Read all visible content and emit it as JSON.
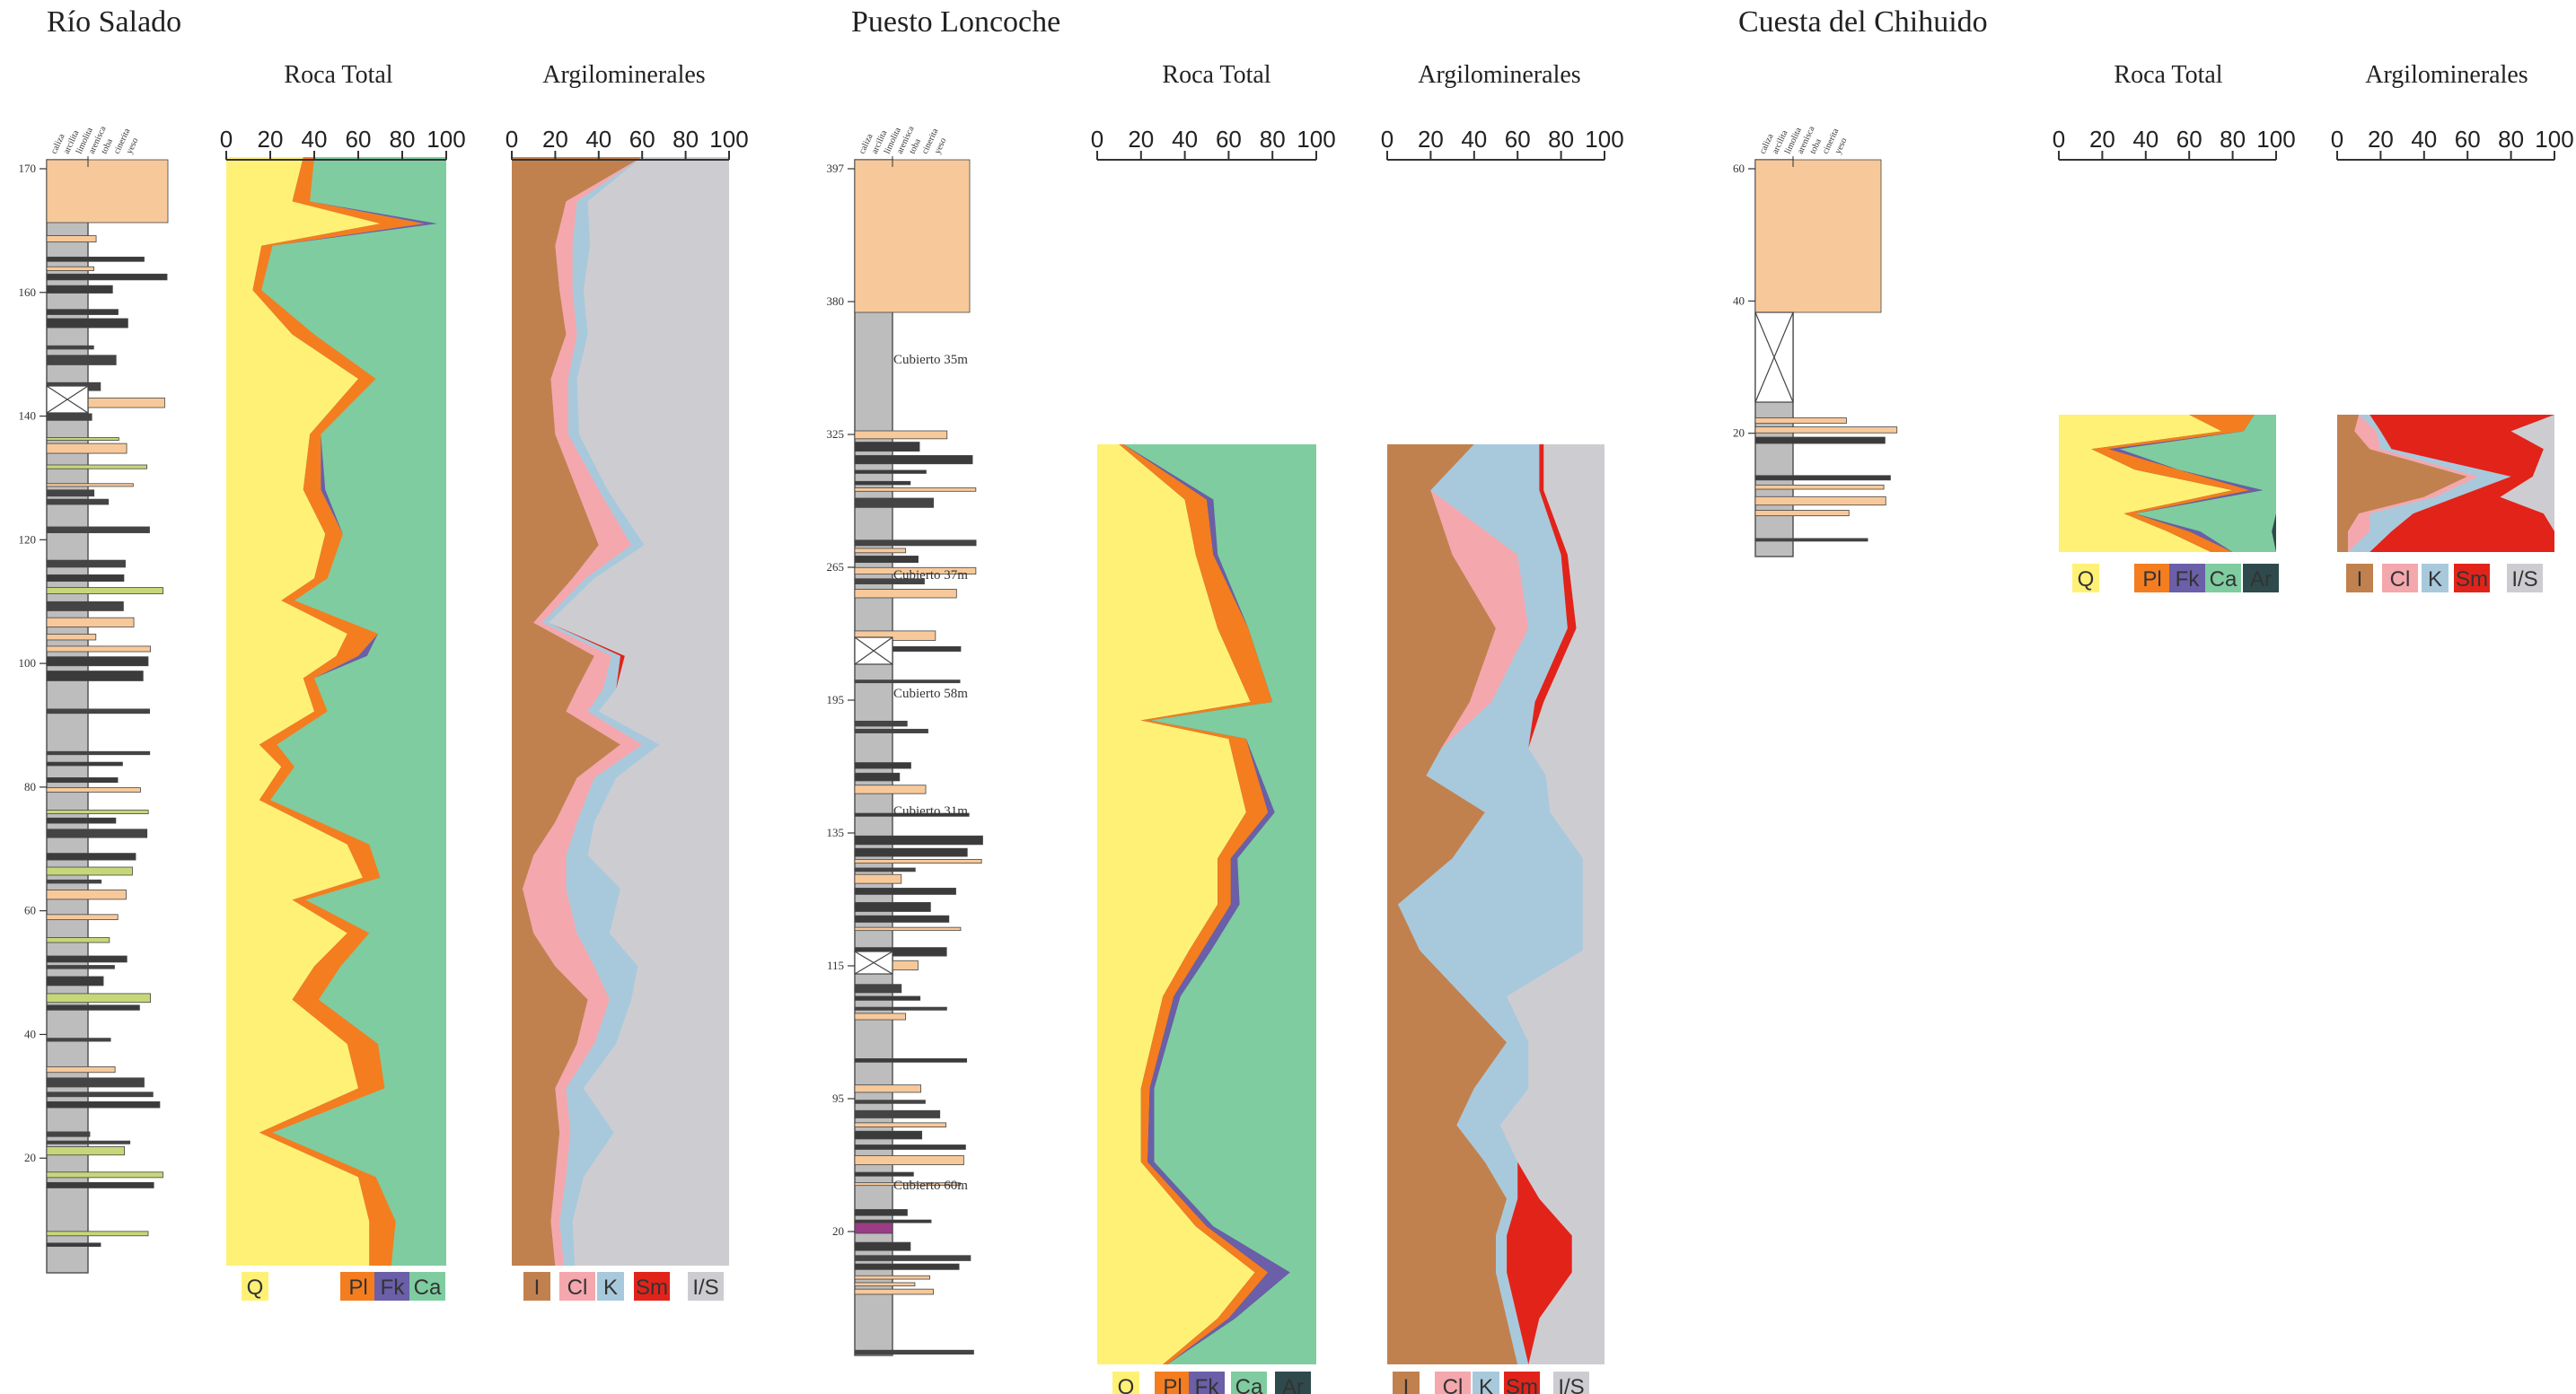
{
  "sections": [
    {
      "id": "rs",
      "title": "Río Salado",
      "panel_titles": [
        "Roca Total",
        "Argilominerales"
      ]
    },
    {
      "id": "pl",
      "title": "Puesto Loncoche",
      "panel_titles": [
        "Roca Total",
        "Argilominerales"
      ]
    },
    {
      "id": "cc",
      "title": "Cuesta del Chihuido",
      "panel_titles": [
        "Roca Total",
        "Argilominerales"
      ]
    }
  ],
  "column_header_words": [
    "caliza",
    "arcilita",
    "limolita",
    "arenisca",
    "toba",
    "cinerita",
    "yeso"
  ],
  "column_ticks": {
    "rs": [
      "170",
      "160",
      "140",
      "120",
      "100",
      "80",
      "60",
      "40",
      "20"
    ],
    "pl": [
      "397",
      "380",
      "325",
      "265",
      "195",
      "135",
      "115",
      "95",
      "20"
    ],
    "cc": [
      "60",
      "40",
      "20"
    ]
  },
  "covered_labels": [
    "Cubierto 35m",
    "Cubierto 37m",
    "Cubierto 58m",
    "Cubierto 31m",
    "Cubierto 60m"
  ],
  "axis_ticks": [
    "0",
    "20",
    "40",
    "60",
    "80",
    "100"
  ],
  "colors": {
    "Q": "#fff176",
    "Pl": "#f47d20",
    "Fk": "#6a5fa8",
    "Ca": "#7fcca0",
    "Ar": "#2f4a4c",
    "I": "#c1814f",
    "Cl": "#f4a7ad",
    "K": "#a8c9dc",
    "Sm": "#e2231a",
    "IS": "#cdcdd1",
    "column_gray": "#bdbdbd",
    "column_dark": "#3b3b3b",
    "column_tan": "#f7c99a",
    "column_green": "#c6d77a",
    "column_purple": "#9b3c86",
    "column_line": "#444444"
  },
  "legends": {
    "rs_rt": [
      "Q",
      "Pl",
      "Fk",
      "Ca"
    ],
    "rs_ar": [
      "I",
      "Cl",
      "K",
      "Sm",
      "I/S"
    ],
    "pl_rt": [
      "Q",
      "Pl",
      "Fk",
      "Ca",
      "Ar"
    ],
    "pl_ar": [
      "I",
      "Cl",
      "K",
      "Sm",
      "I/S"
    ],
    "cc_rt": [
      "Q",
      "Pl",
      "Fk",
      "Ca",
      "Ar"
    ],
    "cc_ar": [
      "I",
      "Cl",
      "K",
      "Sm",
      "I/S"
    ]
  },
  "chart_data": [
    {
      "type": "area",
      "id": "rs_rt",
      "section": "Río Salado",
      "title": "Roca Total",
      "stack": [
        "Q",
        "Pl",
        "Fk",
        "Ca"
      ],
      "x_range": [
        0,
        100
      ],
      "t": [
        0,
        0.04,
        0.06,
        0.08,
        0.12,
        0.16,
        0.2,
        0.25,
        0.3,
        0.34,
        0.38,
        0.4,
        0.43,
        0.45,
        0.47,
        0.5,
        0.53,
        0.55,
        0.58,
        0.62,
        0.65,
        0.67,
        0.7,
        0.73,
        0.76,
        0.8,
        0.84,
        0.88,
        0.92,
        0.96,
        1.0
      ],
      "series": [
        {
          "name": "Q",
          "values": [
            35,
            30,
            70,
            16,
            12,
            30,
            60,
            38,
            35,
            45,
            40,
            25,
            55,
            50,
            35,
            40,
            15,
            25,
            15,
            55,
            62,
            30,
            55,
            40,
            30,
            55,
            60,
            15,
            60,
            65,
            65
          ]
        },
        {
          "name": "Pl",
          "values": [
            5,
            8,
            20,
            5,
            4,
            10,
            8,
            5,
            8,
            8,
            6,
            6,
            14,
            10,
            5,
            6,
            8,
            6,
            5,
            10,
            8,
            6,
            10,
            12,
            12,
            14,
            12,
            6,
            8,
            12,
            10
          ]
        },
        {
          "name": "Fk",
          "values": [
            0,
            0,
            6,
            0,
            0,
            0,
            0,
            0,
            2,
            0,
            0,
            0,
            0,
            4,
            0,
            0,
            0,
            0,
            0,
            0,
            0,
            0,
            0,
            0,
            0,
            0,
            0,
            0,
            0,
            0,
            0
          ]
        }
      ]
    },
    {
      "type": "area",
      "id": "rs_ar",
      "section": "Río Salado",
      "title": "Argilominerales",
      "stack": [
        "I",
        "Cl",
        "K",
        "Sm",
        "I/S"
      ],
      "x_range": [
        0,
        100
      ],
      "t": [
        0,
        0.04,
        0.08,
        0.12,
        0.16,
        0.2,
        0.25,
        0.3,
        0.35,
        0.38,
        0.42,
        0.45,
        0.48,
        0.5,
        0.53,
        0.56,
        0.6,
        0.63,
        0.66,
        0.7,
        0.73,
        0.76,
        0.8,
        0.84,
        0.88,
        0.92,
        0.96,
        1.0
      ],
      "series": [
        {
          "name": "I",
          "values": [
            60,
            25,
            20,
            22,
            25,
            18,
            20,
            30,
            40,
            28,
            10,
            38,
            30,
            25,
            50,
            30,
            20,
            10,
            5,
            10,
            20,
            35,
            30,
            20,
            22,
            20,
            18,
            20
          ]
        },
        {
          "name": "Cl",
          "values": [
            0,
            5,
            8,
            6,
            5,
            8,
            6,
            10,
            15,
            6,
            4,
            8,
            12,
            10,
            10,
            8,
            10,
            15,
            20,
            20,
            18,
            10,
            8,
            5,
            5,
            5,
            4,
            4
          ]
        },
        {
          "name": "K",
          "values": [
            0,
            5,
            8,
            5,
            5,
            4,
            5,
            4,
            6,
            4,
            3,
            4,
            6,
            5,
            8,
            10,
            8,
            10,
            25,
            15,
            20,
            10,
            10,
            8,
            20,
            8,
            6,
            5
          ]
        },
        {
          "name": "Sm",
          "values": [
            0,
            0,
            0,
            0,
            0,
            0,
            0,
            0,
            0,
            0,
            0,
            2,
            0,
            0,
            0,
            0,
            0,
            0,
            0,
            0,
            0,
            0,
            0,
            0,
            0,
            0,
            0,
            0
          ]
        }
      ]
    },
    {
      "type": "area",
      "id": "pl_rt",
      "section": "Puesto Loncoche",
      "title": "Roca Total",
      "stack": [
        "Q",
        "Pl",
        "Fk",
        "Ca",
        "Ar"
      ],
      "x_range": [
        0,
        100
      ],
      "t": [
        0,
        0.06,
        0.12,
        0.2,
        0.28,
        0.3,
        0.32,
        0.4,
        0.45,
        0.5,
        0.55,
        0.6,
        0.7,
        0.78,
        0.85,
        0.9,
        0.95,
        1.0
      ],
      "series": [
        {
          "name": "Q",
          "values": [
            10,
            40,
            45,
            55,
            70,
            20,
            60,
            68,
            55,
            55,
            42,
            30,
            20,
            20,
            45,
            72,
            55,
            30
          ]
        },
        {
          "name": "Pl",
          "values": [
            2,
            10,
            8,
            14,
            10,
            4,
            8,
            10,
            6,
            6,
            6,
            5,
            4,
            3,
            5,
            6,
            5,
            2
          ]
        },
        {
          "name": "Fk",
          "values": [
            0,
            3,
            2,
            0,
            0,
            0,
            0,
            3,
            3,
            4,
            4,
            3,
            2,
            3,
            3,
            10,
            3,
            0
          ]
        },
        {
          "name": "Ca",
          "values": [
            88,
            47,
            45,
            31,
            20,
            76,
            32,
            19,
            36,
            35,
            48,
            62,
            74,
            74,
            47,
            12,
            37,
            68
          ]
        }
      ]
    },
    {
      "type": "area",
      "id": "pl_ar",
      "section": "Puesto Loncoche",
      "title": "Argilominerales",
      "stack": [
        "I",
        "Cl",
        "K",
        "Sm",
        "I/S"
      ],
      "x_range": [
        0,
        100
      ],
      "t": [
        0,
        0.05,
        0.12,
        0.2,
        0.28,
        0.33,
        0.36,
        0.4,
        0.45,
        0.5,
        0.55,
        0.6,
        0.65,
        0.7,
        0.74,
        0.78,
        0.82,
        0.86,
        0.9,
        0.95,
        1.0
      ],
      "series": [
        {
          "name": "I",
          "values": [
            40,
            20,
            30,
            50,
            38,
            25,
            18,
            45,
            30,
            5,
            15,
            35,
            55,
            40,
            32,
            45,
            55,
            50,
            50,
            55,
            60
          ]
        },
        {
          "name": "Cl",
          "values": [
            0,
            0,
            30,
            15,
            10,
            0,
            0,
            0,
            0,
            0,
            0,
            0,
            0,
            0,
            0,
            0,
            0,
            0,
            0,
            0,
            0
          ]
        },
        {
          "name": "K",
          "values": [
            30,
            50,
            20,
            18,
            20,
            40,
            55,
            30,
            60,
            85,
            75,
            20,
            10,
            25,
            20,
            15,
            5,
            5,
            5,
            5,
            5
          ]
        },
        {
          "name": "Sm",
          "values": [
            2,
            2,
            3,
            4,
            4,
            0,
            0,
            0,
            0,
            0,
            0,
            0,
            0,
            0,
            0,
            0,
            10,
            30,
            30,
            10,
            0
          ]
        }
      ]
    },
    {
      "type": "area",
      "id": "cc_rt",
      "section": "Cuesta del Chihuido",
      "title": "Roca Total",
      "stack": [
        "Q",
        "Pl",
        "Fk",
        "Ca",
        "Ar"
      ],
      "x_range": [
        0,
        100
      ],
      "t": [
        0,
        0.12,
        0.25,
        0.4,
        0.55,
        0.72,
        0.85,
        1.0
      ],
      "series": [
        {
          "name": "Q",
          "values": [
            60,
            75,
            15,
            35,
            80,
            30,
            50,
            70
          ]
        },
        {
          "name": "Pl",
          "values": [
            30,
            10,
            8,
            20,
            8,
            5,
            10,
            10
          ]
        },
        {
          "name": "Fk",
          "values": [
            0,
            0,
            5,
            0,
            6,
            0,
            5,
            0
          ]
        },
        {
          "name": "Ca",
          "values": [
            10,
            15,
            72,
            45,
            6,
            65,
            33,
            20
          ]
        }
      ]
    },
    {
      "type": "area",
      "id": "cc_ar",
      "section": "Cuesta del Chihuido",
      "title": "Argilominerales",
      "stack": [
        "I",
        "Cl",
        "K",
        "Sm",
        "I/S"
      ],
      "x_range": [
        0,
        100
      ],
      "t": [
        0,
        0.12,
        0.25,
        0.45,
        0.6,
        0.72,
        0.85,
        1.0
      ],
      "series": [
        {
          "name": "I",
          "values": [
            10,
            8,
            15,
            60,
            40,
            10,
            5,
            5
          ]
        },
        {
          "name": "Cl",
          "values": [
            0,
            10,
            5,
            5,
            5,
            5,
            10,
            0
          ]
        },
        {
          "name": "K",
          "values": [
            5,
            2,
            5,
            15,
            10,
            20,
            10,
            10
          ]
        },
        {
          "name": "Sm",
          "values": [
            85,
            60,
            70,
            10,
            20,
            60,
            75,
            85
          ]
        }
      ]
    }
  ]
}
